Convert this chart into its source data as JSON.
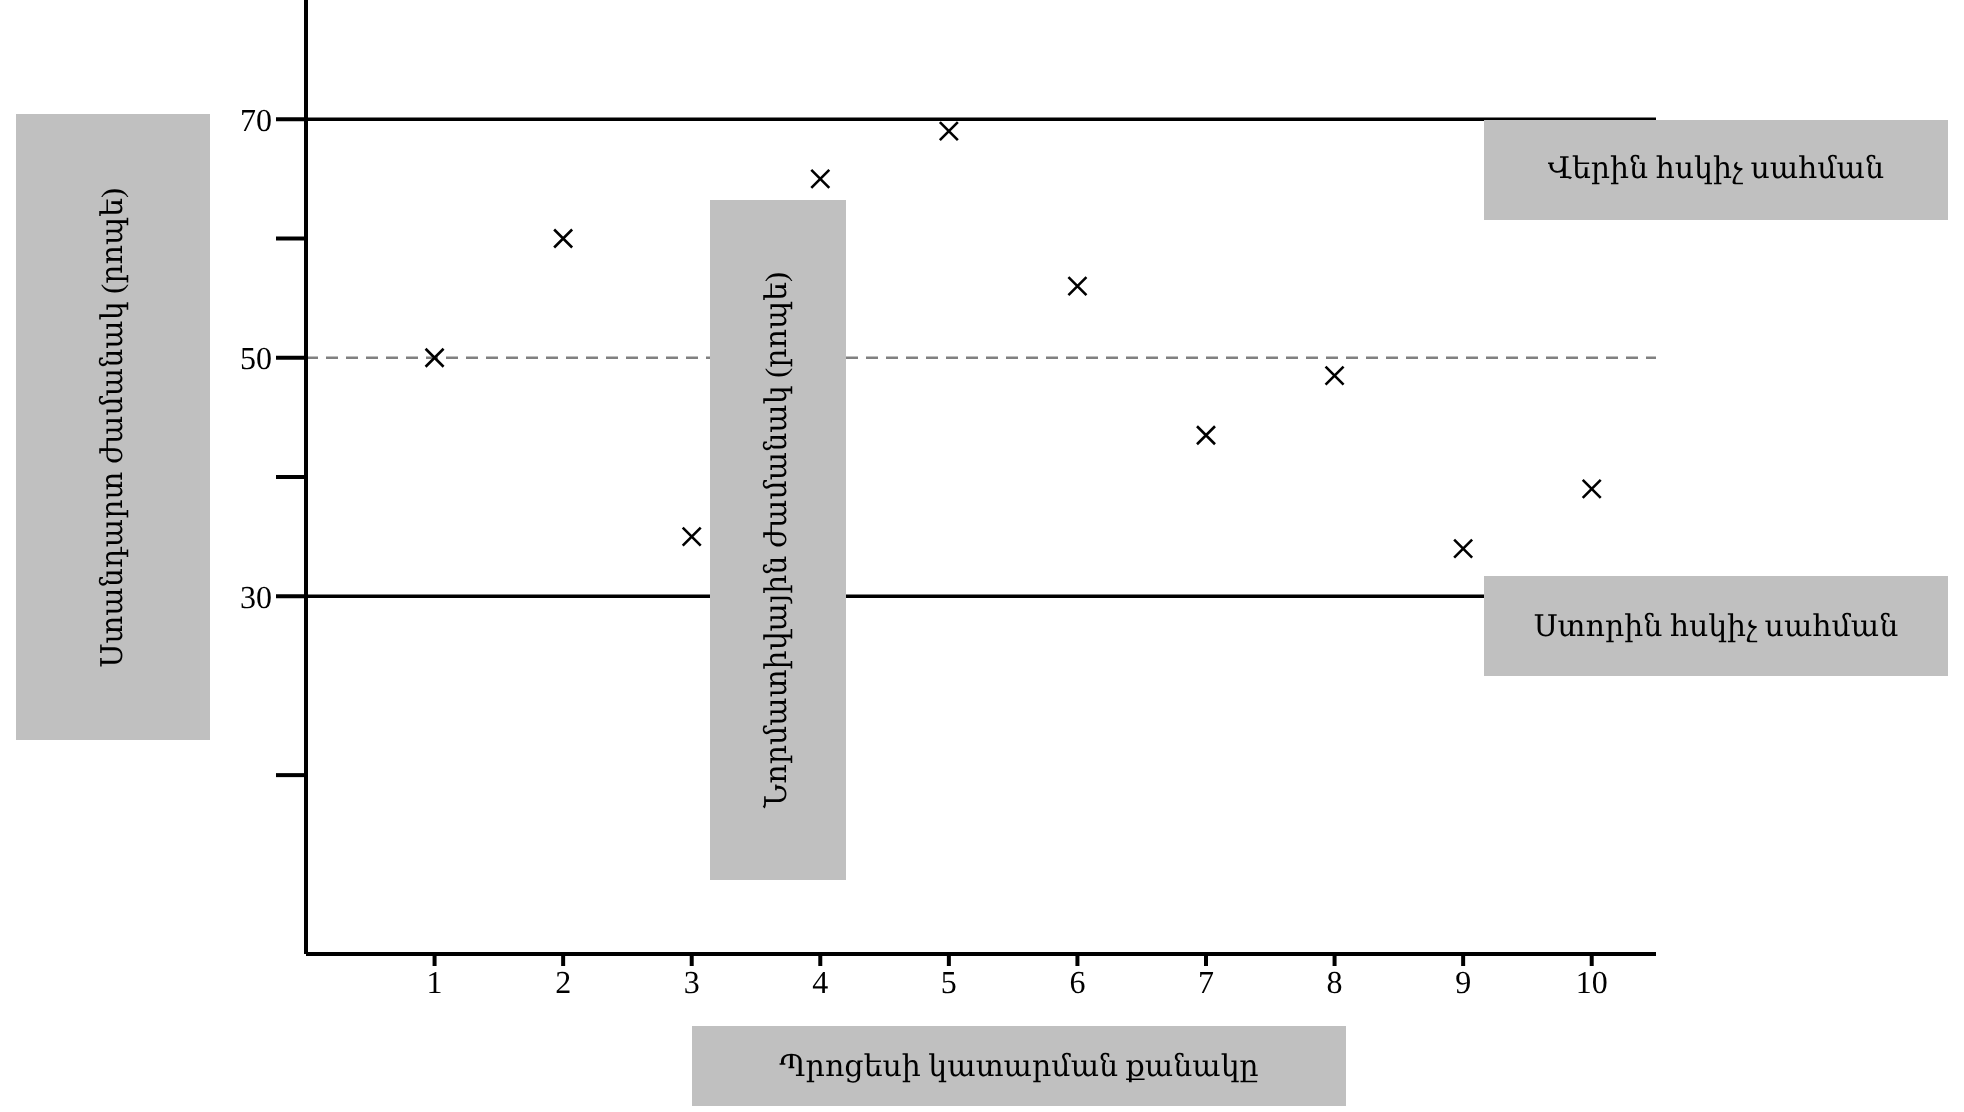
{
  "chart_data": {
    "type": "scatter",
    "xlabel": "Պրոցեսի կատարման քանակը",
    "ylabel": "Ստանդարտ ժամանակ (րոպե)",
    "annotations": [
      "Նորմատիվային ժամանակ (րոպե)"
    ],
    "x": [
      1,
      2,
      3,
      4,
      5,
      6,
      7,
      8,
      9,
      10
    ],
    "series": [
      {
        "color": "#000000",
        "values": [
          50,
          60,
          35,
          65,
          69,
          56,
          43.5,
          48.5,
          34,
          39
        ]
      }
    ],
    "marker": "cross",
    "xlim": [
      0,
      10.5
    ],
    "xticks": [
      1,
      2,
      3,
      4,
      5,
      6,
      7,
      8,
      9,
      10
    ],
    "ylim": [
      0,
      80
    ],
    "yticks": [
      {
        "value": 15,
        "label": null
      },
      30,
      {
        "value": 40,
        "label": null
      },
      50,
      {
        "value": 60,
        "label": null
      },
      70
    ],
    "ref_lines": [
      {
        "axis": "y",
        "value": 70,
        "label": "Վերին հսկիչ սահման",
        "color": "#000000",
        "line_style": "solid"
      },
      {
        "axis": "y",
        "value": 50,
        "label": null,
        "color": "#808080",
        "line_style": "dashed"
      },
      {
        "axis": "y",
        "value": 30,
        "label": "Ստորին հսկիչ սահման",
        "color": "#000000",
        "line_style": "solid"
      }
    ],
    "grid": false,
    "legend": false
  }
}
